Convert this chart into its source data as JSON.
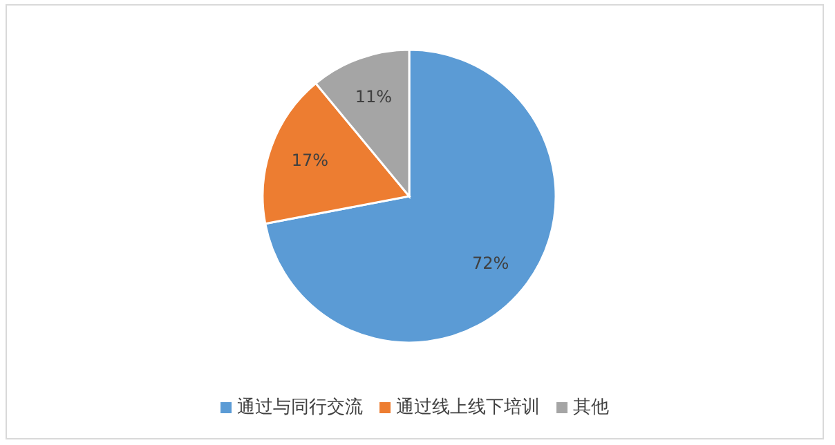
{
  "chart_data": {
    "type": "pie",
    "categories": [
      "通过与同行交流",
      "通过线上线下培训",
      "其他"
    ],
    "values": [
      72,
      17,
      11
    ],
    "colors": [
      "#5b9bd5",
      "#ed7d31",
      "#a5a5a5"
    ],
    "value_labels": [
      "72%",
      "17%",
      "11%"
    ],
    "legend": "bottom"
  }
}
